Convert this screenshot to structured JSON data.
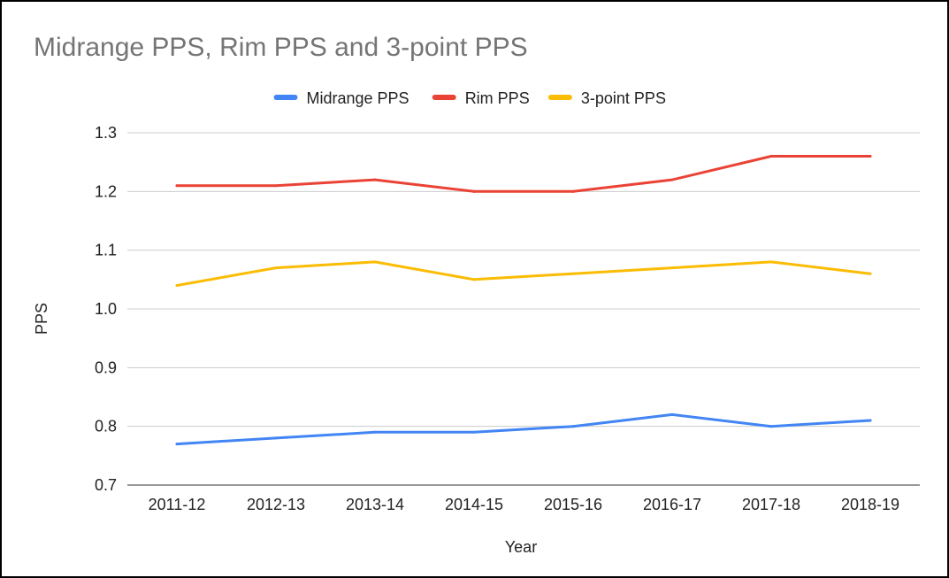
{
  "chart_data": {
    "type": "line",
    "title": "Midrange PPS, Rim PPS and 3-point PPS",
    "xlabel": "Year",
    "ylabel": "PPS",
    "categories": [
      "2011-12",
      "2012-13",
      "2013-14",
      "2014-15",
      "2015-16",
      "2016-17",
      "2017-18",
      "2018-19"
    ],
    "ylim": [
      0.7,
      1.3
    ],
    "yticks": [
      "1.3",
      "1.2",
      "1.1",
      "1.0",
      "0.9",
      "0.8",
      "0.7"
    ],
    "grid": true,
    "legend_position": "top",
    "series": [
      {
        "name": "Midrange PPS",
        "color": "#4285f4",
        "values": [
          0.77,
          0.78,
          0.79,
          0.79,
          0.8,
          0.82,
          0.8,
          0.81
        ]
      },
      {
        "name": "Rim PPS",
        "color": "#ea4335",
        "values": [
          1.21,
          1.21,
          1.22,
          1.2,
          1.2,
          1.22,
          1.26,
          1.26
        ]
      },
      {
        "name": "3-point PPS",
        "color": "#fbbc04",
        "values": [
          1.04,
          1.07,
          1.08,
          1.05,
          1.06,
          1.07,
          1.08,
          1.06
        ]
      }
    ]
  }
}
